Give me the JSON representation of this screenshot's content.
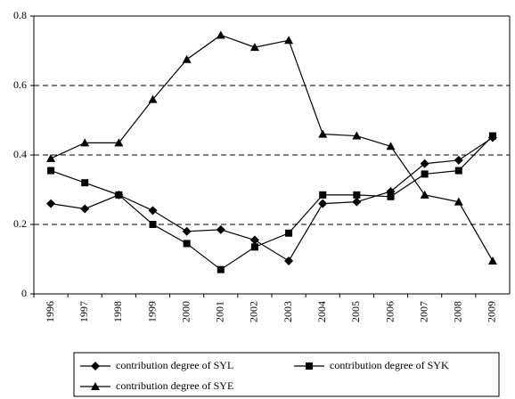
{
  "chart_data": {
    "type": "line",
    "categories": [
      "1996",
      "1997",
      "1998",
      "1999",
      "2000",
      "2001",
      "2002",
      "2003",
      "2004",
      "2005",
      "2006",
      "2007",
      "2008",
      "2009"
    ],
    "series": [
      {
        "name": "contribution degree of SYL",
        "color": "#000000",
        "marker": "diamond",
        "values": [
          0.26,
          0.245,
          0.285,
          0.24,
          0.18,
          0.185,
          0.155,
          0.095,
          0.26,
          0.265,
          0.295,
          0.375,
          0.385,
          0.45
        ]
      },
      {
        "name": "contribution degree of SYK",
        "color": "#000000",
        "marker": "square",
        "values": [
          0.355,
          0.32,
          0.285,
          0.2,
          0.145,
          0.07,
          0.135,
          0.175,
          0.285,
          0.285,
          0.28,
          0.345,
          0.355,
          0.455
        ]
      },
      {
        "name": "contribution degree of SYE",
        "color": "#000000",
        "marker": "triangle",
        "values": [
          0.39,
          0.435,
          0.435,
          0.56,
          0.675,
          0.745,
          0.71,
          0.73,
          0.46,
          0.455,
          0.425,
          0.285,
          0.265,
          0.095
        ]
      }
    ],
    "ylim": [
      0,
      0.8
    ],
    "yticks": [
      0,
      0.2,
      0.4,
      0.6,
      0.8
    ],
    "grid": true
  }
}
